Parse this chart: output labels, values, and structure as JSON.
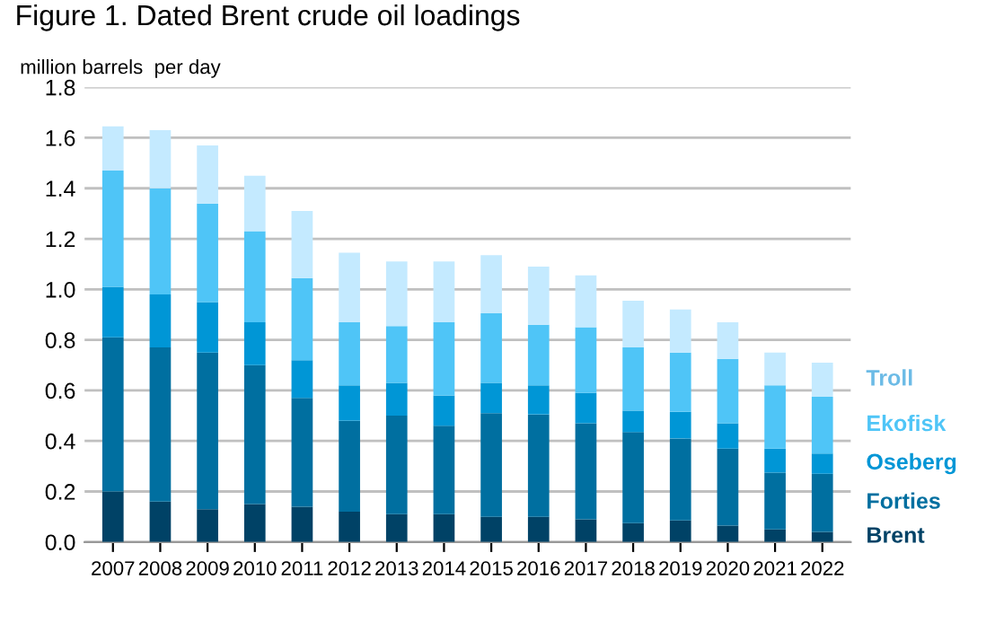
{
  "chart_data": {
    "type": "bar",
    "stacked": true,
    "title": "Figure 1. Dated Brent crude oil loadings",
    "ylabel": "million barrels  per day",
    "categories": [
      "2007",
      "2008",
      "2009",
      "2010",
      "2011",
      "2012",
      "2013",
      "2014",
      "2015",
      "2016",
      "2017",
      "2018",
      "2019",
      "2020",
      "2021",
      "2022"
    ],
    "series": [
      {
        "name": "Brent",
        "color": "#004266",
        "values": [
          0.2,
          0.16,
          0.13,
          0.15,
          0.14,
          0.12,
          0.11,
          0.11,
          0.1,
          0.1,
          0.09,
          0.075,
          0.085,
          0.065,
          0.05,
          0.04
        ]
      },
      {
        "name": "Forties",
        "color": "#006fa0",
        "values": [
          0.61,
          0.61,
          0.62,
          0.55,
          0.43,
          0.36,
          0.39,
          0.35,
          0.41,
          0.405,
          0.38,
          0.36,
          0.325,
          0.305,
          0.225,
          0.23
        ]
      },
      {
        "name": "Oseberg",
        "color": "#0096d6",
        "values": [
          0.2,
          0.21,
          0.2,
          0.17,
          0.15,
          0.14,
          0.13,
          0.12,
          0.12,
          0.115,
          0.12,
          0.085,
          0.105,
          0.1,
          0.095,
          0.08
        ]
      },
      {
        "name": "Ekofisk",
        "color": "#4fc5f7",
        "values": [
          0.46,
          0.42,
          0.39,
          0.36,
          0.325,
          0.25,
          0.225,
          0.29,
          0.275,
          0.24,
          0.26,
          0.25,
          0.235,
          0.255,
          0.25,
          0.225
        ]
      },
      {
        "name": "Troll",
        "color": "#c4eaff",
        "values": [
          0.175,
          0.23,
          0.23,
          0.22,
          0.265,
          0.275,
          0.255,
          0.24,
          0.23,
          0.23,
          0.205,
          0.185,
          0.17,
          0.145,
          0.13,
          0.135
        ]
      }
    ],
    "ylim": [
      0,
      1.8
    ],
    "yticks": [
      {
        "value": 0,
        "label": "0.0"
      },
      0.2,
      0.4,
      0.6,
      0.8,
      {
        "value": 1,
        "label": "1.0"
      },
      1.2,
      1.4,
      1.6,
      1.8
    ],
    "grid": "y",
    "legend": "right"
  }
}
